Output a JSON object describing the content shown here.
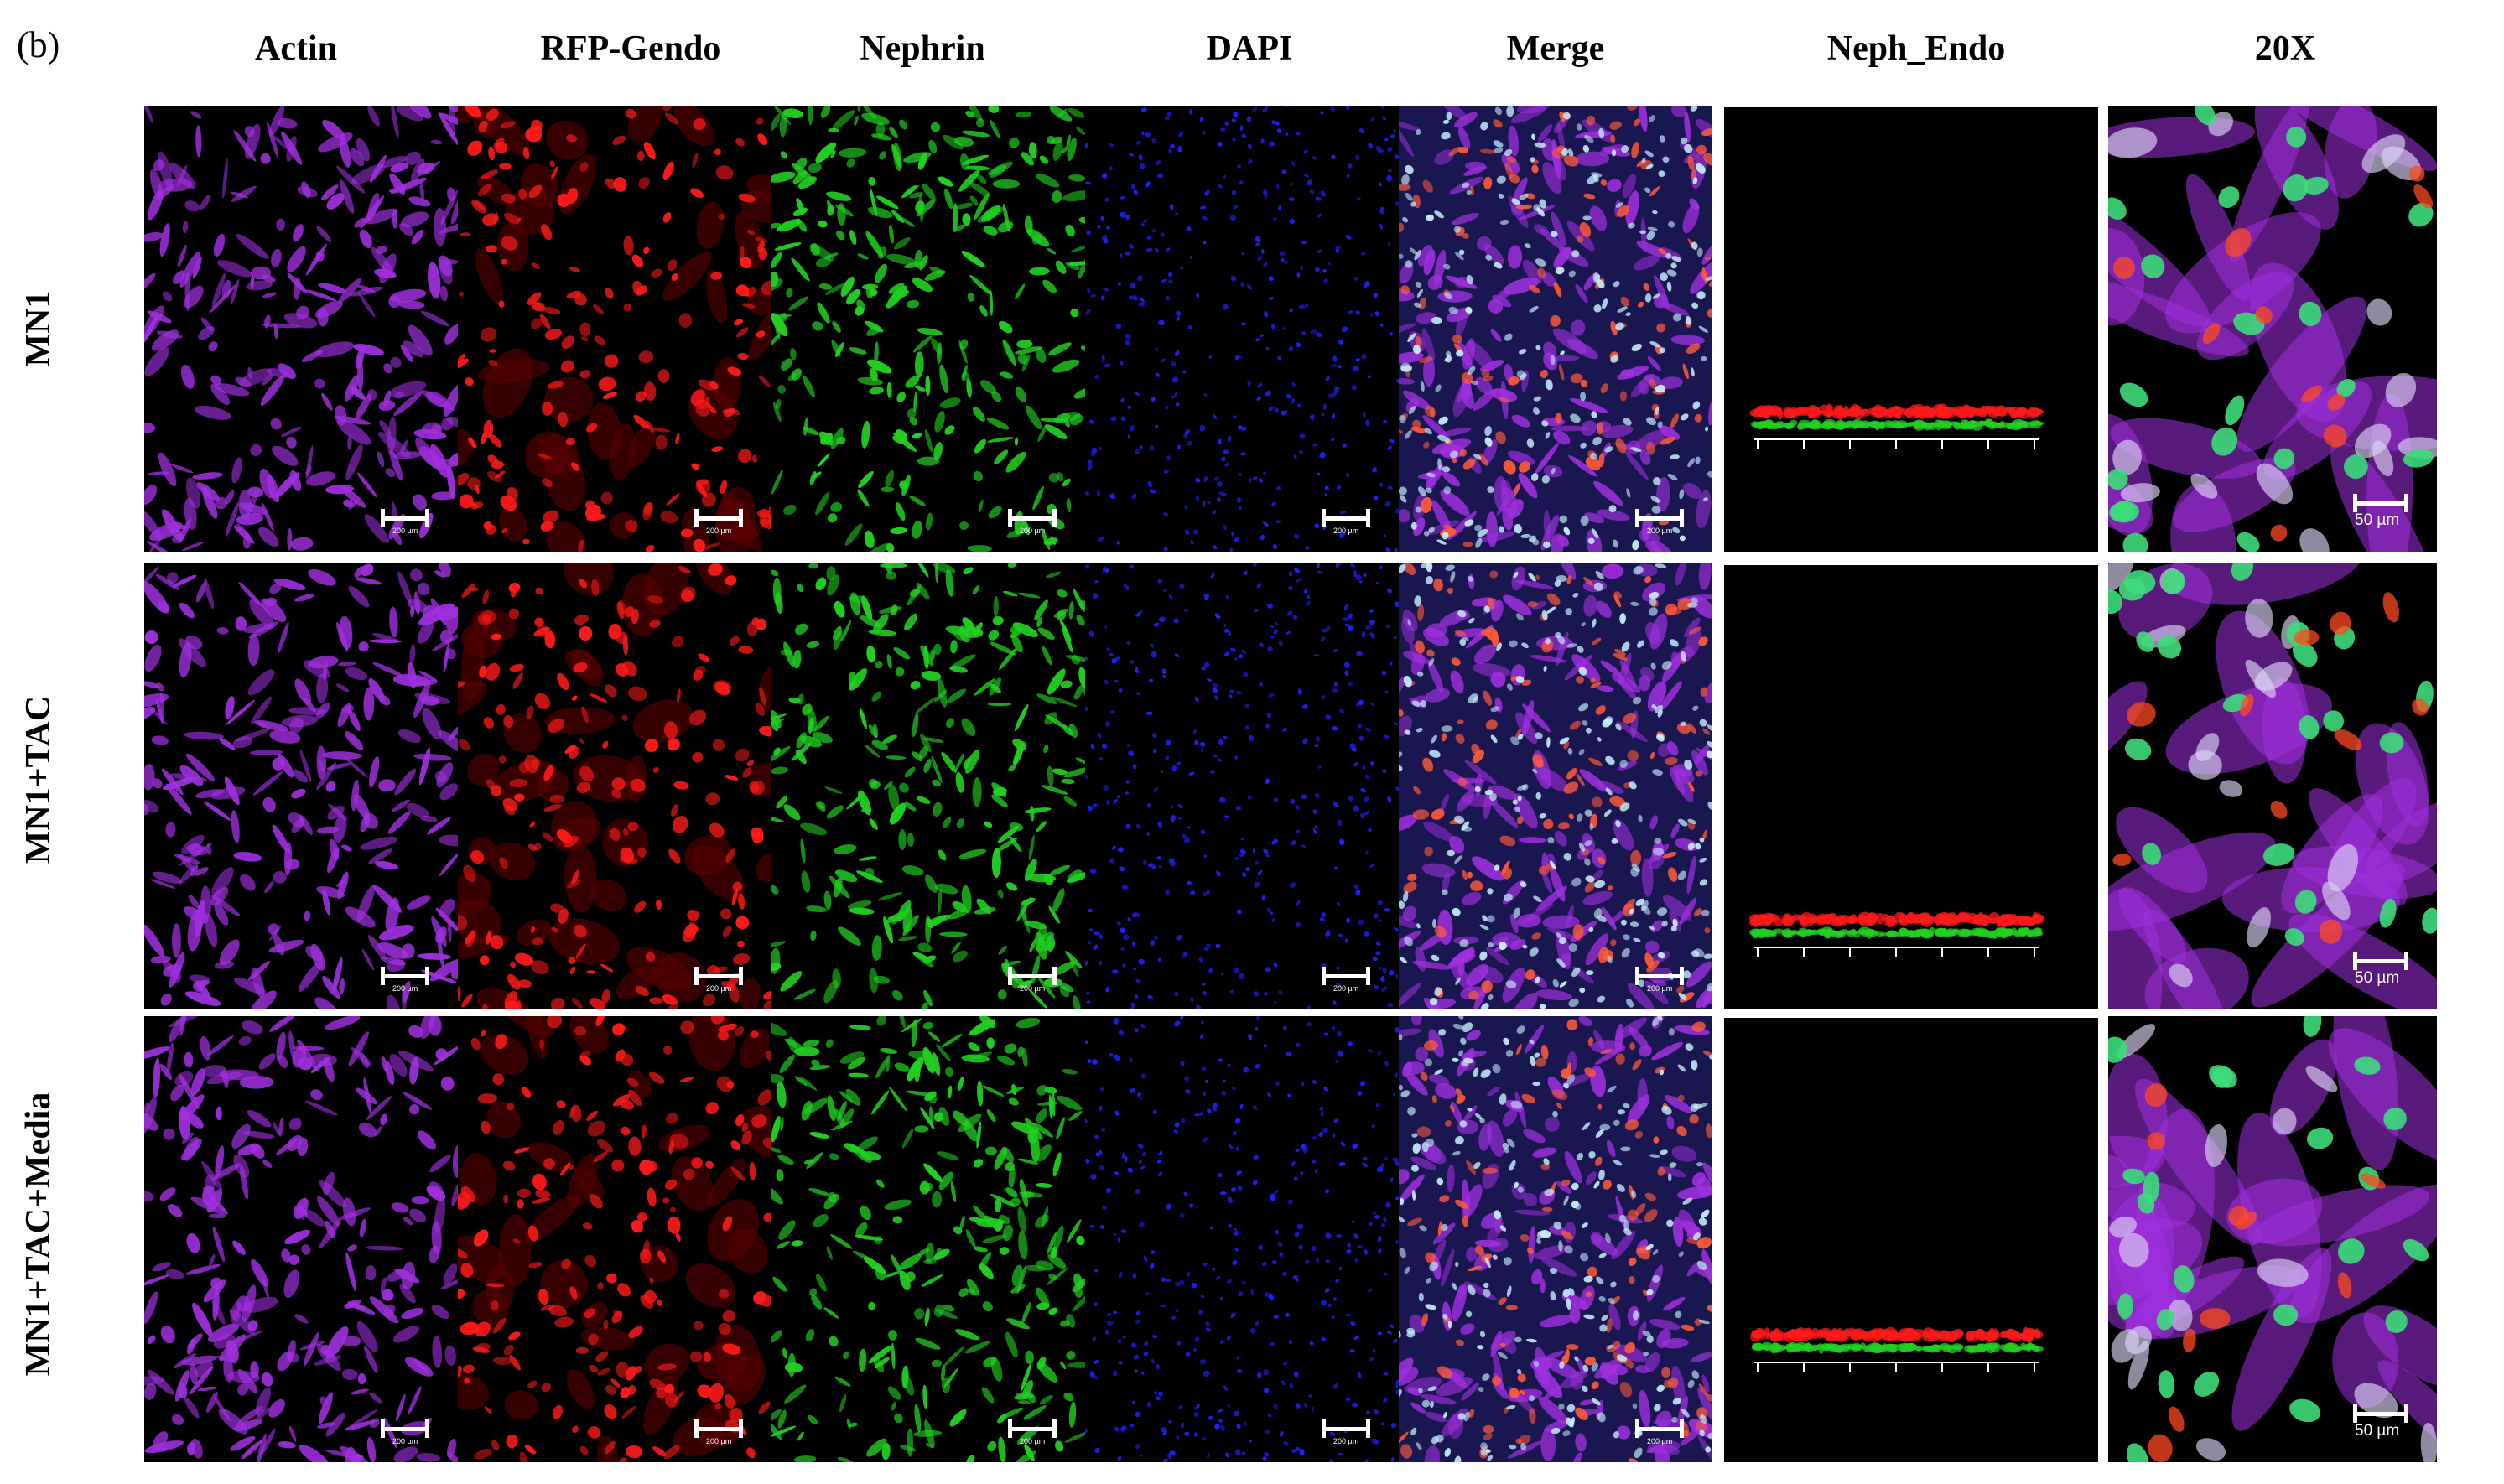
{
  "figure_label": "(b)",
  "columns": [
    "Actin",
    "RFP-Gendo",
    "Nephrin",
    "DAPI",
    "Merge",
    "Neph_Endo",
    "20X"
  ],
  "rows": [
    "MN1",
    "MN1+TAC",
    "MN1+TAC+Media"
  ],
  "scale_small": "200 µm",
  "scale_large": "50 µm",
  "colors": {
    "actin": "#a030e0",
    "rfp": "#ff1a1a",
    "nephrin": "#22d022",
    "dapi": "#2020ff",
    "background": "#000000"
  }
}
